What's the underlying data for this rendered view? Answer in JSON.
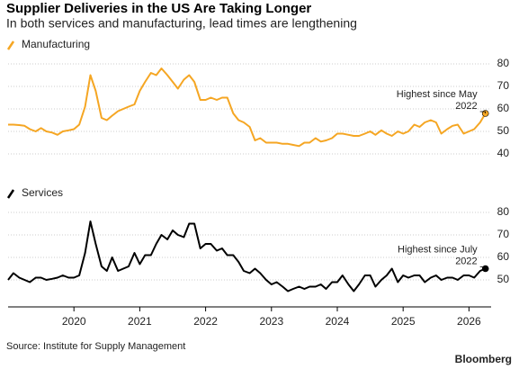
{
  "title": "Supplier Deliveries in the US Are Taking Longer",
  "subtitle": "In both services and manufacturing, lead times are lengthening",
  "source": "Source: Institute for Supply Management",
  "brand": "Bloomberg",
  "chart_data": [
    {
      "type": "line",
      "x": [
        2019.0,
        2019.08,
        2019.17,
        2019.25,
        2019.33,
        2019.42,
        2019.5,
        2019.58,
        2019.67,
        2019.75,
        2019.83,
        2019.92,
        2020.0,
        2020.08,
        2020.17,
        2020.25,
        2020.33,
        2020.42,
        2020.5,
        2020.58,
        2020.67,
        2020.75,
        2020.83,
        2020.92,
        2021.0,
        2021.08,
        2021.17,
        2021.25,
        2021.33,
        2021.42,
        2021.5,
        2021.58,
        2021.67,
        2021.75,
        2021.83,
        2021.92,
        2022.0,
        2022.08,
        2022.17,
        2022.25,
        2022.33,
        2022.42,
        2022.5,
        2022.58,
        2022.67,
        2022.75,
        2022.83,
        2022.92,
        2023.0,
        2023.08,
        2023.17,
        2023.25,
        2023.33,
        2023.42,
        2023.5,
        2023.58,
        2023.67,
        2023.75,
        2023.83,
        2023.92,
        2024.0,
        2024.08,
        2024.17,
        2024.25,
        2024.33,
        2024.42,
        2024.5,
        2024.58,
        2024.67,
        2024.75,
        2024.83,
        2024.92,
        2025.0,
        2025.08,
        2025.17,
        2025.25,
        2025.33,
        2025.42,
        2025.5,
        2025.58,
        2025.67,
        2025.75,
        2025.83,
        2025.92,
        2026.0,
        2026.08,
        2026.17,
        2026.25
      ],
      "series": [
        {
          "name": "Manufacturing",
          "color": "#f5a623",
          "values": [
            53,
            53,
            52.8,
            52.5,
            51,
            50,
            51.5,
            50,
            49.5,
            48.5,
            50,
            50.5,
            51,
            53,
            61,
            75,
            68,
            56,
            55,
            57,
            59,
            60,
            61,
            62,
            68,
            72,
            76,
            75,
            78,
            75,
            72,
            69,
            73,
            75,
            72,
            64,
            64,
            65,
            64,
            65,
            65,
            58,
            55,
            54,
            52,
            46,
            47,
            45,
            45,
            45,
            44.5,
            44.5,
            44,
            43.5,
            45,
            45,
            47,
            45.5,
            46,
            47,
            49,
            49,
            48.5,
            48,
            48,
            49,
            50,
            48.5,
            50.5,
            49,
            48,
            50,
            49,
            50,
            53,
            52,
            54,
            55,
            54,
            49,
            51,
            52.5,
            53,
            49,
            50,
            51,
            54,
            58
          ]
        }
      ],
      "annotation": [
        "Highest since May",
        "2022"
      ],
      "xlim": [
        2019,
        2026.35
      ],
      "ylim": [
        38,
        82
      ],
      "yticks": [
        40,
        50,
        60,
        70,
        80
      ],
      "grid": true
    },
    {
      "type": "line",
      "x": [
        2019.0,
        2019.08,
        2019.17,
        2019.25,
        2019.33,
        2019.42,
        2019.5,
        2019.58,
        2019.67,
        2019.75,
        2019.83,
        2019.92,
        2020.0,
        2020.08,
        2020.17,
        2020.25,
        2020.33,
        2020.42,
        2020.5,
        2020.58,
        2020.67,
        2020.75,
        2020.83,
        2020.92,
        2021.0,
        2021.08,
        2021.17,
        2021.25,
        2021.33,
        2021.42,
        2021.5,
        2021.58,
        2021.67,
        2021.75,
        2021.83,
        2021.92,
        2022.0,
        2022.08,
        2022.17,
        2022.25,
        2022.33,
        2022.42,
        2022.5,
        2022.58,
        2022.67,
        2022.75,
        2022.83,
        2022.92,
        2023.0,
        2023.08,
        2023.17,
        2023.25,
        2023.33,
        2023.42,
        2023.5,
        2023.58,
        2023.67,
        2023.75,
        2023.83,
        2023.92,
        2024.0,
        2024.08,
        2024.17,
        2024.25,
        2024.33,
        2024.42,
        2024.5,
        2024.58,
        2024.67,
        2024.75,
        2024.83,
        2024.92,
        2025.0,
        2025.08,
        2025.17,
        2025.25,
        2025.33,
        2025.42,
        2025.5,
        2025.58,
        2025.67,
        2025.75,
        2025.83,
        2025.92,
        2026.0,
        2026.08,
        2026.17,
        2026.25
      ],
      "series": [
        {
          "name": "Services",
          "color": "#000000",
          "values": [
            50,
            53,
            51,
            50,
            49,
            51,
            51,
            50,
            50.5,
            51,
            52,
            51,
            51,
            52,
            62,
            76,
            66,
            56,
            54,
            60,
            54,
            55,
            56,
            62,
            57,
            61,
            61,
            66,
            70,
            68,
            72,
            70,
            69,
            75,
            75,
            64,
            66,
            66,
            63,
            64,
            61,
            61,
            58,
            54,
            53,
            55,
            53,
            50,
            48,
            49,
            47,
            45,
            46,
            47,
            46,
            47,
            47,
            48,
            46,
            49,
            49,
            52,
            48,
            45,
            48,
            52,
            52,
            47,
            50,
            52,
            55,
            49,
            52,
            51,
            52,
            52,
            49,
            51,
            52,
            50,
            51,
            51,
            50,
            52,
            52,
            51,
            54,
            55
          ]
        }
      ],
      "annotation": [
        "Highest since July",
        "2022"
      ],
      "xlim": [
        2019,
        2026.35
      ],
      "ylim": [
        38,
        82
      ],
      "yticks": [
        50,
        60,
        70,
        80
      ],
      "xticks": [
        2020,
        2021,
        2022,
        2023,
        2024,
        2025,
        2026
      ],
      "grid": true
    }
  ]
}
